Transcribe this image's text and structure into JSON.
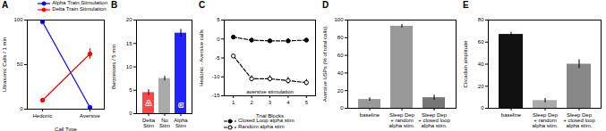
{
  "chart_data": [
    {
      "type": "line",
      "title": "A",
      "xlabel": "Call Type",
      "ylabel": "Ultrasonic Calls / 1 min",
      "categories": [
        "Hedonic",
        "Aversive"
      ],
      "series": [
        {
          "name": "Alpha Train Stimulation",
          "color": "blue",
          "values": [
            98,
            2
          ],
          "errors": [
            1,
            1
          ],
          "marker": "circle",
          "line_style": "solid"
        },
        {
          "name": "Delta Train Stimulation",
          "color": "red",
          "values": [
            10,
            62
          ],
          "errors": [
            2,
            6
          ],
          "marker": "circle",
          "line_style": "solid"
        }
      ],
      "ylim": [
        0,
        100
      ],
      "yticks": [
        0,
        50,
        100
      ],
      "legend": "upper right"
    },
    {
      "type": "bar",
      "title": "B",
      "ylabel": "Barpresses / 5 min",
      "categories": [
        "Delta\nStim",
        "No\nStim",
        "Alpha\nStim"
      ],
      "values": [
        4.5,
        7.5,
        17.2
      ],
      "errors": [
        0.6,
        0.5,
        0.8
      ],
      "colors": [
        "#ff4444",
        "#aaaaaa",
        "#2222ff"
      ],
      "ylim": [
        0,
        20
      ],
      "yticks": [
        0,
        5,
        10,
        15,
        20
      ],
      "annotations": [
        {
          "text": "Δ",
          "x": "Delta\nStim",
          "y": 1.8,
          "color": "red"
        },
        {
          "text": "α",
          "x": "Alpha\nStim",
          "y": 1.5,
          "color": "blue"
        }
      ]
    },
    {
      "type": "line",
      "title": "C",
      "xlabel": "Trial Blocks",
      "ylabel": "Hedonic - Aversive calls",
      "x": [
        1,
        2,
        3,
        4,
        5
      ],
      "series": [
        {
          "name": "Closed Loop alpha stim",
          "color": "black",
          "values": [
            0.5,
            -0.3,
            -0.5,
            -0.5,
            -0.3
          ],
          "errors": [
            0.5,
            0.4,
            0.5,
            0.5,
            0.4
          ],
          "marker": "circle",
          "line_style": "dashed"
        },
        {
          "name": "Random alpha stim",
          "color": "black",
          "values": [
            -4.5,
            -10.5,
            -10.5,
            -11.0,
            -11.5
          ],
          "errors": [
            0.5,
            0.8,
            0.8,
            0.9,
            0.8
          ],
          "marker": "open_circle",
          "line_style": "dashed"
        }
      ],
      "xlim": [
        0.5,
        5.5
      ],
      "xticks": [
        1,
        2,
        3,
        4,
        5
      ],
      "ylim": [
        -15,
        5
      ],
      "yticks": [
        -15,
        -10,
        -5,
        0,
        5
      ],
      "legend": "lower left",
      "annotations": [
        {
          "text": "aversive stimulation",
          "x": 3.0,
          "y": -13.5
        }
      ]
    },
    {
      "type": "bar",
      "title": "D",
      "ylabel": "Aversive USPs (% of total calls)",
      "categories": [
        "baseline",
        "Sleep Dep\n+ random\nalpha stim.",
        "Sleep Dep\n+ closed loop\nalpha stim."
      ],
      "values": [
        10,
        93,
        12
      ],
      "errors": [
        2,
        2,
        3
      ],
      "colors": [
        "#999999",
        "#999999",
        "#777777"
      ],
      "ylim": [
        0,
        100
      ],
      "yticks": [
        0,
        20,
        40,
        60,
        80,
        100
      ]
    },
    {
      "type": "bar",
      "title": "E",
      "ylabel": "Circadian amplitude",
      "categories": [
        "baseline",
        "Sleep Dep\n+ random\nalpha stim.",
        "Sleep Dep\n+ closed loop\nalpha stim."
      ],
      "values": [
        67,
        7,
        40
      ],
      "errors": [
        2,
        2,
        4
      ],
      "colors": [
        "#111111",
        "#aaaaaa",
        "#888888"
      ],
      "ylim": [
        0,
        80
      ],
      "yticks": [
        0,
        20,
        40,
        60,
        80
      ]
    }
  ]
}
